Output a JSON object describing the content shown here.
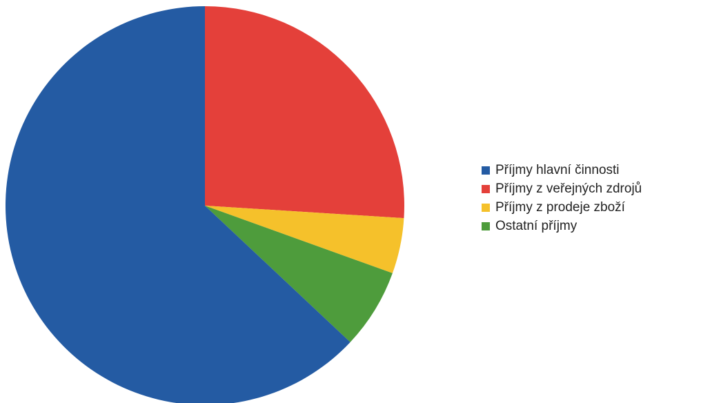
{
  "chart_data": {
    "type": "pie",
    "legend_position": "right",
    "start_angle_deg": 0,
    "direction": "clockwise",
    "slices": [
      {
        "label": "Příjmy z veřejných zdrojů",
        "value": 26,
        "color": "#e4403a"
      },
      {
        "label": "Příjmy z prodeje zboží",
        "value": 4.5,
        "color": "#f5c12b"
      },
      {
        "label": "Ostatní příjmy",
        "value": 6.5,
        "color": "#4e9c3c"
      },
      {
        "label": "Příjmy hlavní činnosti",
        "value": 63,
        "color": "#245ba3"
      }
    ],
    "legend": [
      {
        "label": "Příjmy hlavní činnosti",
        "color": "#245ba3"
      },
      {
        "label": "Příjmy z veřejných zdrojů",
        "color": "#e4403a"
      },
      {
        "label": "Příjmy z prodeje zboží",
        "color": "#f5c12b"
      },
      {
        "label": "Ostatní příjmy",
        "color": "#4e9c3c"
      }
    ]
  }
}
